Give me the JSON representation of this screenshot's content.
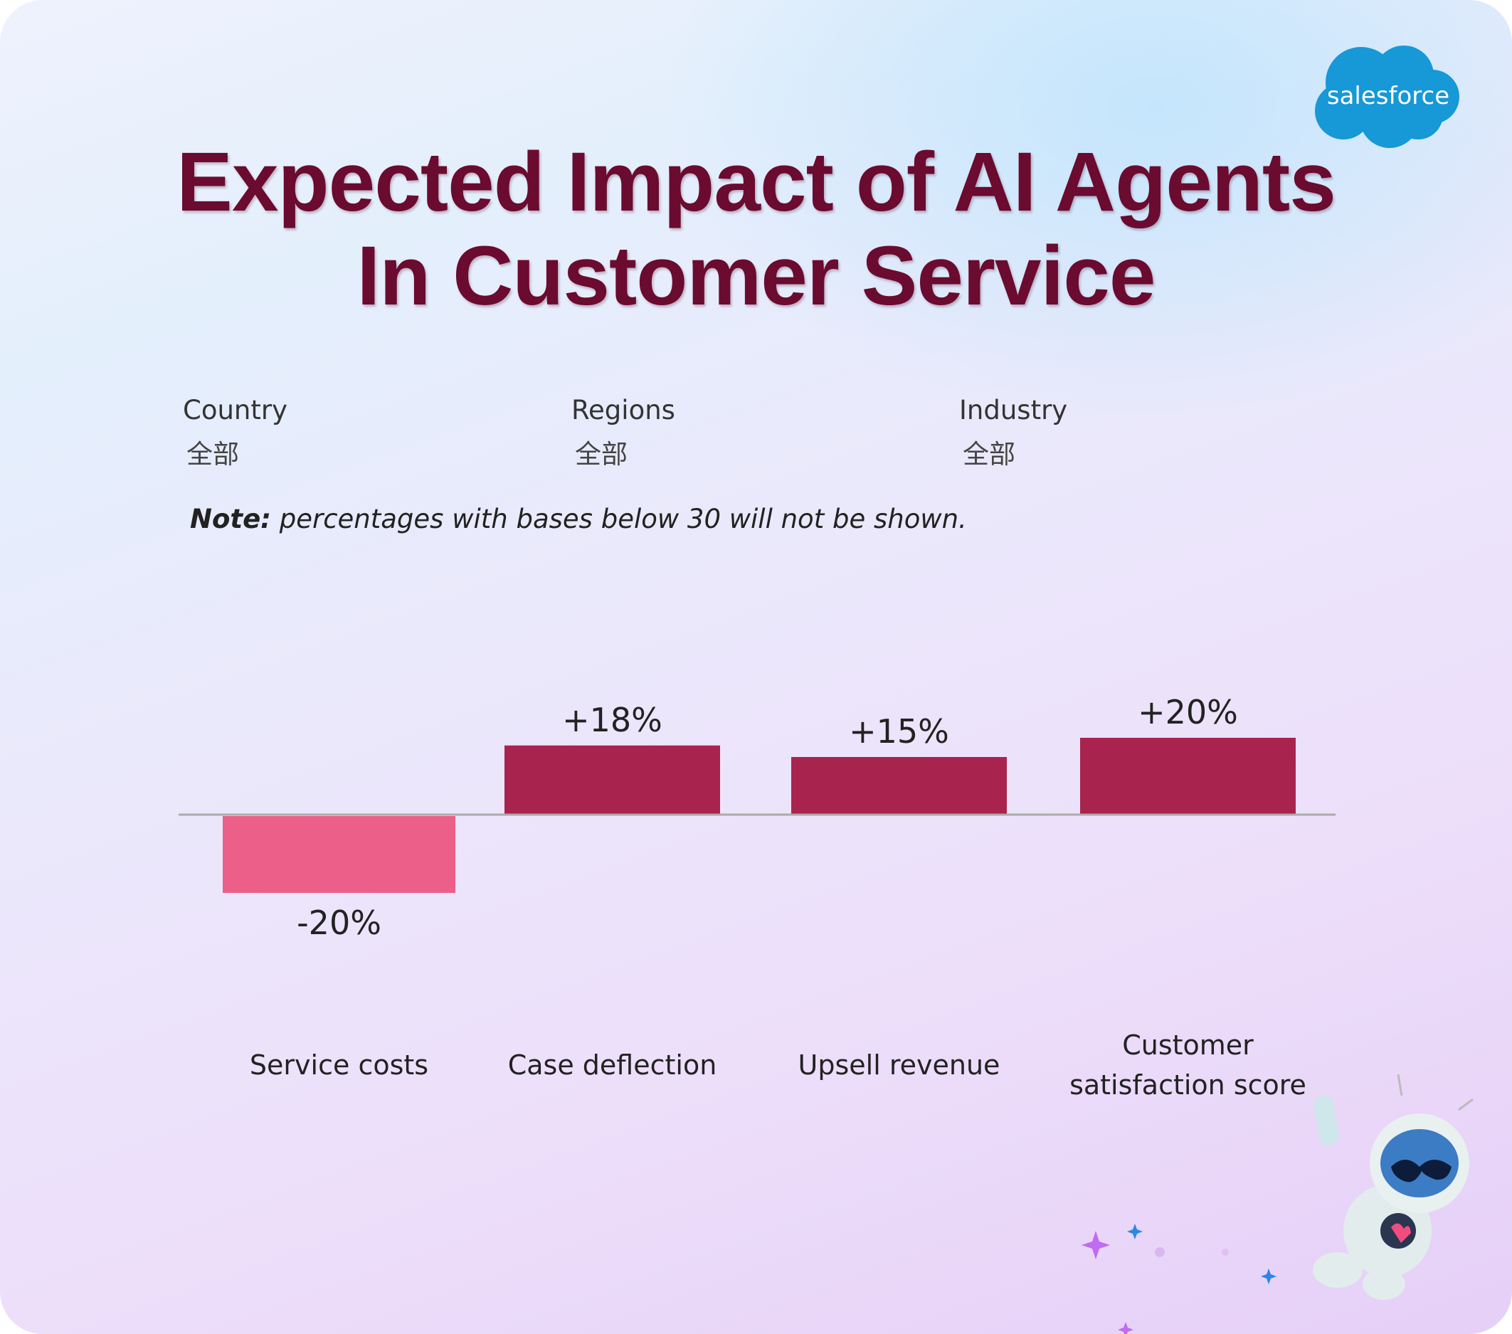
{
  "title_line1": "Expected Impact of AI Agents",
  "title_line2": "In Customer Service",
  "logo_text": "salesforce",
  "filters": [
    {
      "label": "Country",
      "value": "全部"
    },
    {
      "label": "Regions",
      "value": "全部"
    },
    {
      "label": "Industry",
      "value": "全部"
    }
  ],
  "note": {
    "prefix": "Note:",
    "text": " percentages with bases below 30 will not be shown."
  },
  "colors": {
    "positive": "#a8244f",
    "negative": "#ec5f89",
    "title": "#6a0b2f"
  },
  "chart_data": {
    "type": "bar",
    "title": "Expected Impact of AI Agents In Customer Service",
    "categories": [
      "Service costs",
      "Case deflection",
      "Upsell revenue",
      "Customer satisfaction score"
    ],
    "category_lines": [
      [
        "Service costs"
      ],
      [
        "Case deflection"
      ],
      [
        "Upsell revenue"
      ],
      [
        "Customer",
        "satisfaction score"
      ]
    ],
    "values": [
      -20,
      18,
      15,
      20
    ],
    "labels": [
      "-20%",
      "+18%",
      "+15%",
      "+20%"
    ],
    "xlabel": "",
    "ylabel": "",
    "unit": "%",
    "grid": false,
    "legend": "none"
  }
}
